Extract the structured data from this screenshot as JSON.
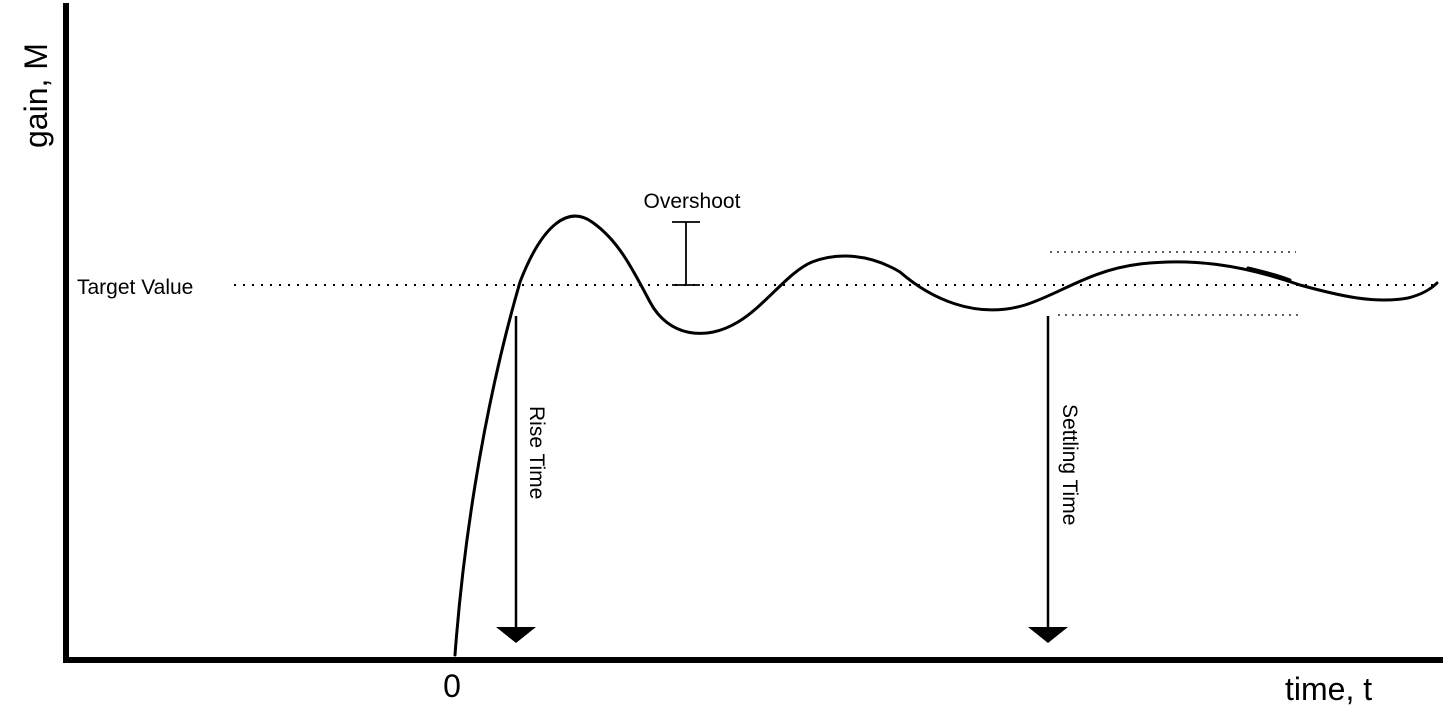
{
  "axes": {
    "y_title": "gain, M",
    "x_title": "time, t",
    "x_origin_label": "0"
  },
  "annotations": {
    "target_value": "Target Value",
    "overshoot": "Overshoot",
    "rise_time": "Rise Time",
    "settling_time": "Settling Time"
  },
  "colors": {
    "ink": "#000000",
    "background": "#ffffff"
  }
}
